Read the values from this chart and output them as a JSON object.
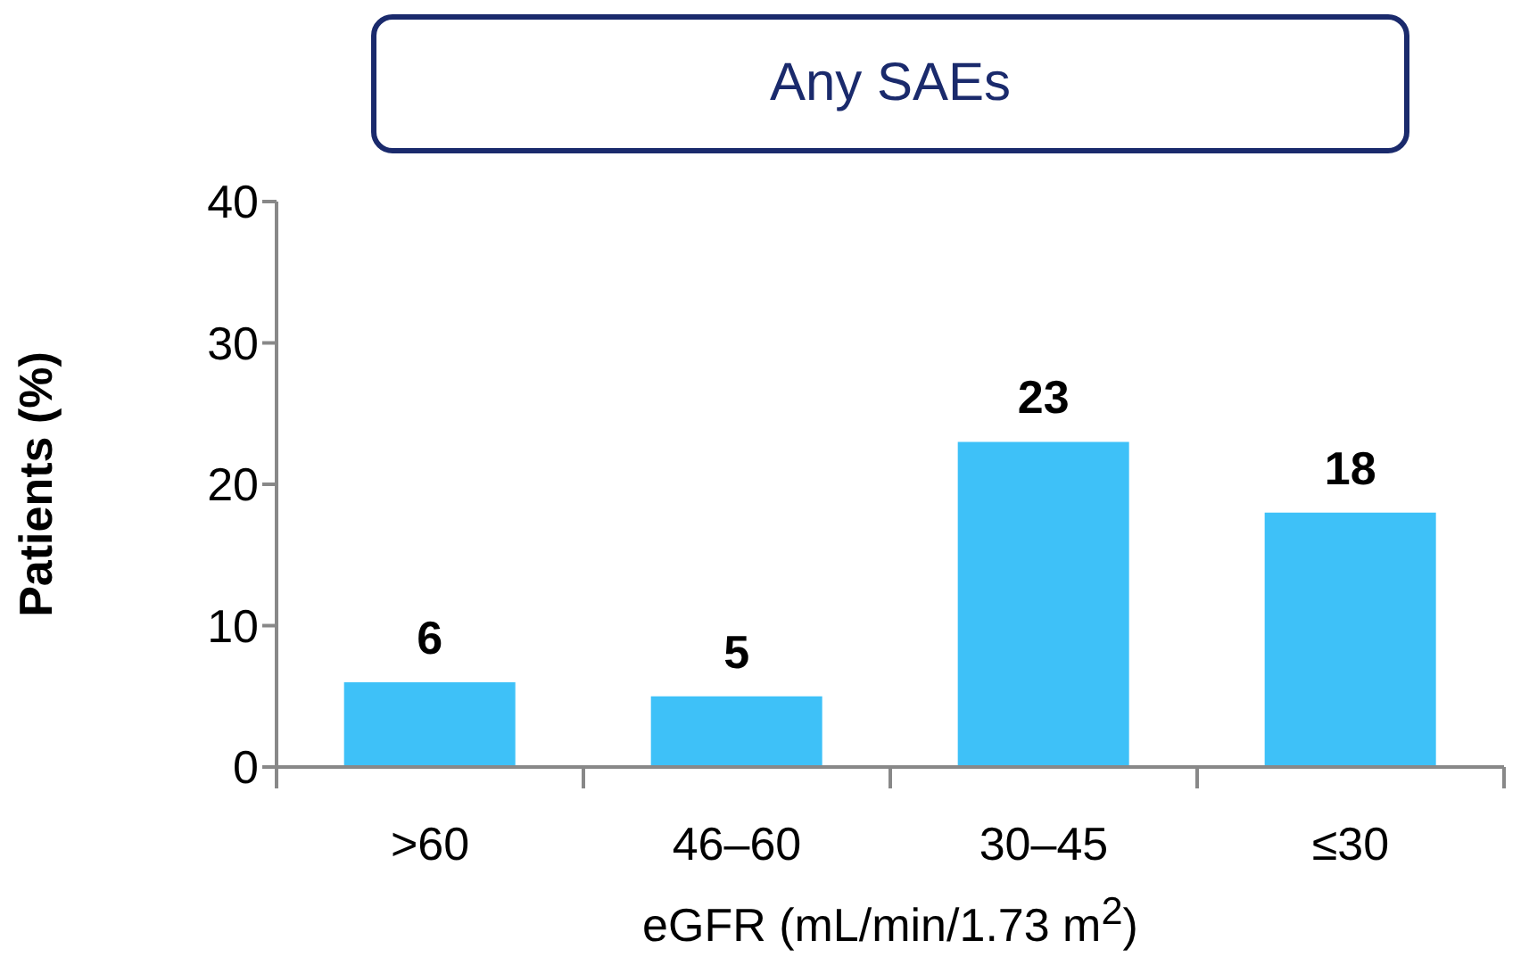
{
  "chart_data": {
    "type": "bar",
    "title": "Any SAEs",
    "xlabel": "eGFR (mL/min/1.73 m$^{2}$)",
    "ylabel": "Patients (%)",
    "categories": [
      ">60",
      "46–60",
      "30–45",
      "≤30"
    ],
    "values": [
      6,
      5,
      23,
      18
    ],
    "color": "#3ec1f8",
    "ylim": [
      0,
      40
    ],
    "yticks": [
      0,
      10,
      20,
      30,
      40
    ],
    "data_labels": true,
    "grid": false
  }
}
